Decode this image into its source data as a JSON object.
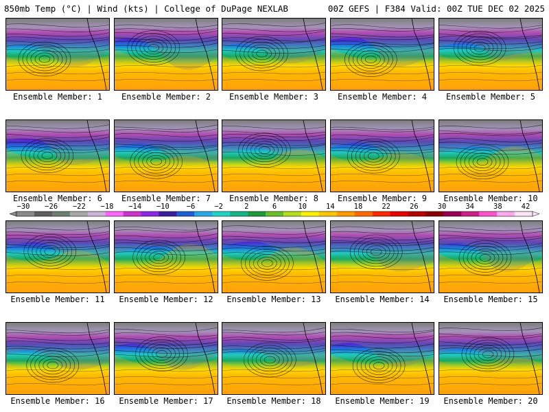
{
  "header": {
    "left": "850mb Temp (°C) | Wind (kts) | College of DuPage NEXLAB",
    "right": "00Z GEFS | F384 Valid: 00Z TUE DEC 02 2025"
  },
  "panels": [
    {
      "label": "Ensemble Member: 1"
    },
    {
      "label": "Ensemble Member: 2"
    },
    {
      "label": "Ensemble Member: 3"
    },
    {
      "label": "Ensemble Member: 4"
    },
    {
      "label": "Ensemble Member: 5"
    },
    {
      "label": "Ensemble Member: 6"
    },
    {
      "label": "Ensemble Member: 7"
    },
    {
      "label": "Ensemble Member: 8"
    },
    {
      "label": "Ensemble Member: 9"
    },
    {
      "label": "Ensemble Member: 10"
    },
    {
      "label": "Ensemble Member: 11"
    },
    {
      "label": "Ensemble Member: 12"
    },
    {
      "label": "Ensemble Member: 13"
    },
    {
      "label": "Ensemble Member: 14"
    },
    {
      "label": "Ensemble Member: 15"
    },
    {
      "label": "Ensemble Member: 16"
    },
    {
      "label": "Ensemble Member: 17"
    },
    {
      "label": "Ensemble Member: 18"
    },
    {
      "label": "Ensemble Member: 19"
    },
    {
      "label": "Ensemble Member: 20"
    }
  ],
  "colorbar": {
    "ticks": [
      "−30",
      "−26",
      "−22",
      "−18",
      "−14",
      "−10",
      "−6",
      "−2",
      "2",
      "6",
      "10",
      "14",
      "18",
      "22",
      "26",
      "30",
      "34",
      "38",
      "42"
    ],
    "tick_values": [
      -30,
      -26,
      -22,
      -18,
      -14,
      -10,
      -6,
      -2,
      2,
      6,
      10,
      14,
      18,
      22,
      26,
      30,
      34,
      38,
      42
    ],
    "min": -32,
    "max": 44,
    "colors": [
      "#8a8a8a",
      "#5f5f5f",
      "#6f7f6f",
      "#a8a8a8",
      "#c9b4d8",
      "#ff66ff",
      "#cc33cc",
      "#8a2be2",
      "#3d1f9e",
      "#1e5fd6",
      "#2aa8e6",
      "#22d3c7",
      "#19b38a",
      "#1f9a3a",
      "#6cbb2a",
      "#b8dd1f",
      "#fff200",
      "#ffc600",
      "#ff9a00",
      "#ff6a00",
      "#ff2a00",
      "#e60000",
      "#b30000",
      "#8b0000",
      "#990055",
      "#cc2288",
      "#ff55cc",
      "#ffaaee",
      "#ffe6f7"
    ]
  }
}
